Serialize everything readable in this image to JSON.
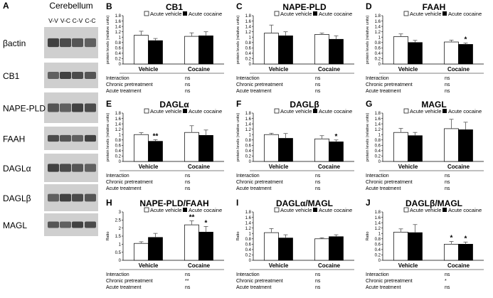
{
  "blot": {
    "panel_letter": "A",
    "region": "Cerebellum",
    "lanes": [
      "V-V",
      "V-C",
      "C-V",
      "C-C"
    ],
    "proteins": [
      "βactin",
      "CB1",
      "NAPE-PLD",
      "FAAH",
      "DAGLα",
      "DAGLβ",
      "MAGL"
    ]
  },
  "legend": {
    "white": "Acute vehicle",
    "black": "Acute cocaine"
  },
  "stat_labels": [
    "Interaction",
    "Chronic pretreatment",
    "Acute treatment"
  ],
  "chart_data": [
    {
      "letter": "B",
      "type": "bar",
      "title": "CB1",
      "ylabel": "protein levels (relative units)",
      "ylim": [
        0,
        1.8
      ],
      "yticks": [
        "0",
        "0.2",
        "0.4",
        "0.6",
        "0.8",
        "1",
        "1.2",
        "1.4",
        "1.6",
        "1.8"
      ],
      "categories": [
        "Vehicle",
        "Cocaine"
      ],
      "series": [
        {
          "name": "Acute vehicle",
          "values": [
            1.07,
            1.03
          ],
          "errors": [
            0.15,
            0.13
          ]
        },
        {
          "name": "Acute cocaine",
          "values": [
            0.87,
            1.05
          ],
          "errors": [
            0.08,
            0.15
          ]
        }
      ],
      "sig": [],
      "stats": [
        "ns",
        "ns",
        "ns"
      ]
    },
    {
      "letter": "C",
      "type": "bar",
      "title": "NAPE-PLD",
      "ylabel": "protein levels (relative units)",
      "ylim": [
        0,
        1.8
      ],
      "yticks": [
        "0",
        "0.2",
        "0.4",
        "0.6",
        "0.8",
        "1",
        "1.2",
        "1.4",
        "1.6",
        "1.8"
      ],
      "categories": [
        "Vehicle",
        "Cocaine"
      ],
      "series": [
        {
          "name": "Acute vehicle",
          "values": [
            1.15,
            1.1
          ],
          "errors": [
            0.3,
            0.05
          ]
        },
        {
          "name": "Acute cocaine",
          "values": [
            1.05,
            0.92
          ],
          "errors": [
            0.15,
            0.13
          ]
        }
      ],
      "sig": [],
      "stats": [
        "ns",
        "ns",
        "ns"
      ]
    },
    {
      "letter": "D",
      "type": "bar",
      "title": "FAAH",
      "ylabel": "protein levels (relative units)",
      "ylim": [
        0,
        1.8
      ],
      "yticks": [
        "0",
        "0.2",
        "0.4",
        "0.6",
        "0.8",
        "1",
        "1.2",
        "1.4",
        "1.6",
        "1.8"
      ],
      "categories": [
        "Vehicle",
        "Cocaine"
      ],
      "series": [
        {
          "name": "Acute vehicle",
          "values": [
            1.02,
            0.82
          ],
          "errors": [
            0.1,
            0.07
          ]
        },
        {
          "name": "Acute cocaine",
          "values": [
            0.8,
            0.73
          ],
          "errors": [
            0.08,
            0.05
          ]
        }
      ],
      "sig": [
        {
          "category": 1,
          "series": 1,
          "text": "*"
        }
      ],
      "stats": [
        "ns",
        "ns",
        "ns"
      ]
    },
    {
      "letter": "E",
      "type": "bar",
      "title": "DAGLα",
      "ylabel": "protein levels (relative units)",
      "ylim": [
        0,
        1.8
      ],
      "yticks": [
        "0",
        "0.2",
        "0.4",
        "0.6",
        "0.8",
        "1",
        "1.2",
        "1.4",
        "1.6",
        "1.8"
      ],
      "categories": [
        "Vehicle",
        "Cocaine"
      ],
      "series": [
        {
          "name": "Acute vehicle",
          "values": [
            1.0,
            1.08
          ],
          "errors": [
            0.07,
            0.25
          ]
        },
        {
          "name": "Acute cocaine",
          "values": [
            0.75,
            0.97
          ],
          "errors": [
            0.06,
            0.2
          ]
        }
      ],
      "sig": [
        {
          "category": 0,
          "series": 1,
          "text": "**"
        }
      ],
      "stats": [
        "ns",
        "ns",
        "ns"
      ]
    },
    {
      "letter": "F",
      "type": "bar",
      "title": "DAGLβ",
      "ylabel": "protein levels (relative units)",
      "ylim": [
        0,
        1.8
      ],
      "yticks": [
        "0",
        "0.2",
        "0.4",
        "0.6",
        "0.8",
        "1",
        "1.2",
        "1.4",
        "1.6",
        "1.8"
      ],
      "categories": [
        "Vehicle",
        "Cocaine"
      ],
      "series": [
        {
          "name": "Acute vehicle",
          "values": [
            1.0,
            0.84
          ],
          "errors": [
            0.05,
            0.12
          ]
        },
        {
          "name": "Acute cocaine",
          "values": [
            0.86,
            0.73
          ],
          "errors": [
            0.18,
            0.07
          ]
        }
      ],
      "sig": [
        {
          "category": 1,
          "series": 1,
          "text": "*"
        }
      ],
      "stats": [
        "ns",
        "ns",
        "ns"
      ]
    },
    {
      "letter": "G",
      "type": "bar",
      "title": "MAGL",
      "ylabel": "protein levels (relative units)",
      "ylim": [
        0,
        1.8
      ],
      "yticks": [
        "0",
        "0.2",
        "0.4",
        "0.6",
        "0.8",
        "1",
        "1.2",
        "1.4",
        "1.6",
        "1.8"
      ],
      "categories": [
        "Vehicle",
        "Cocaine"
      ],
      "series": [
        {
          "name": "Acute vehicle",
          "values": [
            1.08,
            1.22
          ],
          "errors": [
            0.15,
            0.35
          ]
        },
        {
          "name": "Acute cocaine",
          "values": [
            0.96,
            1.18
          ],
          "errors": [
            0.12,
            0.28
          ]
        }
      ],
      "sig": [],
      "stats": [
        "ns",
        "ns",
        "ns"
      ]
    },
    {
      "letter": "H",
      "type": "bar",
      "title": "NAPE-PLD/FAAH",
      "ylabel": "Ratio",
      "ylim": [
        0,
        3
      ],
      "yticks": [
        "0",
        "0.5",
        "1",
        "1.5",
        "2",
        "2.5",
        "3"
      ],
      "categories": [
        "Vehicle",
        "Cocaine"
      ],
      "series": [
        {
          "name": "Acute vehicle",
          "values": [
            1.05,
            2.2
          ],
          "errors": [
            0.1,
            0.25
          ]
        },
        {
          "name": "Acute cocaine",
          "values": [
            1.42,
            1.75
          ],
          "errors": [
            0.25,
            0.35
          ]
        }
      ],
      "sig": [
        {
          "category": 1,
          "series": 0,
          "text": "**"
        },
        {
          "category": 1,
          "series": 1,
          "text": "*"
        }
      ],
      "stats": [
        "ns",
        "**",
        "ns"
      ]
    },
    {
      "letter": "I",
      "type": "bar",
      "title": "DAGLα/MAGL",
      "ylabel": "Ratio",
      "ylim": [
        0,
        1.8
      ],
      "yticks": [
        "0",
        "0.2",
        "0.4",
        "0.6",
        "0.8",
        "1",
        "1.2",
        "1.4",
        "1.6",
        "1.8"
      ],
      "categories": [
        "Vehicle",
        "Cocaine"
      ],
      "series": [
        {
          "name": "Acute vehicle",
          "values": [
            1.03,
            0.8
          ],
          "errors": [
            0.15,
            0.04
          ]
        },
        {
          "name": "Acute cocaine",
          "values": [
            0.83,
            0.88
          ],
          "errors": [
            0.12,
            0.07
          ]
        }
      ],
      "sig": [],
      "stats": [
        "ns",
        "ns",
        "ns"
      ]
    },
    {
      "letter": "J",
      "type": "bar",
      "title": "DAGLβ/MAGL",
      "ylabel": "Ratio",
      "ylim": [
        0,
        1.8
      ],
      "yticks": [
        "0",
        "0.2",
        "0.4",
        "0.6",
        "0.8",
        "1",
        "1.2",
        "1.4",
        "1.6",
        "1.8"
      ],
      "categories": [
        "Vehicle",
        "Cocaine"
      ],
      "series": [
        {
          "name": "Acute vehicle",
          "values": [
            1.05,
            0.6
          ],
          "errors": [
            0.12,
            0.1
          ]
        },
        {
          "name": "Acute cocaine",
          "values": [
            1.03,
            0.6
          ],
          "errors": [
            0.3,
            0.08
          ]
        }
      ],
      "sig": [
        {
          "category": 1,
          "series": 0,
          "text": "*"
        },
        {
          "category": 1,
          "series": 1,
          "text": "*"
        }
      ],
      "stats": [
        "ns",
        "*",
        "ns"
      ]
    }
  ]
}
